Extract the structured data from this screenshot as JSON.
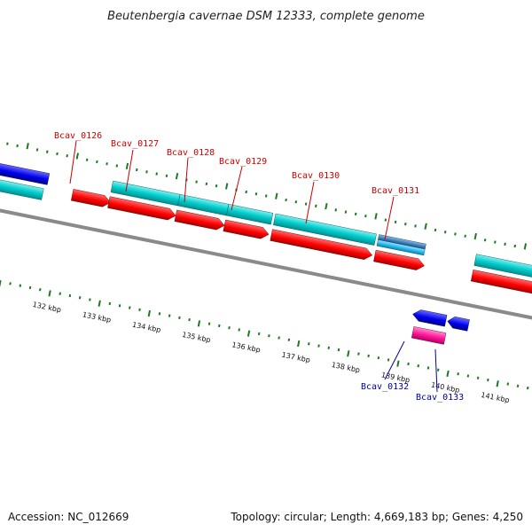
{
  "title": "Beutenbergia cavernae DSM 12333, complete genome",
  "footer": {
    "accession": "Accession: NC_012669",
    "summary": "Topology: circular; Length: 4,669,183 bp; Genes: 4,250"
  },
  "colors": {
    "backbone": "#8a8a8a",
    "tick": "#1f7a1f",
    "cds": "#ff0000",
    "cds_reverse": "#0000ee",
    "gene": "#00cccc",
    "gene_alt": "#3f7fbf",
    "rna": "#ff1493",
    "label_forward": "#cc0000",
    "label_reverse": "#000099"
  },
  "scale": {
    "unit": "kbp",
    "labeled_ticks": [
      132,
      133,
      134,
      135,
      136,
      137,
      138,
      139,
      140,
      141
    ]
  },
  "genes": [
    {
      "id": "Bcav_0126",
      "strand": "forward"
    },
    {
      "id": "Bcav_0127",
      "strand": "forward"
    },
    {
      "id": "Bcav_0128",
      "strand": "forward"
    },
    {
      "id": "Bcav_0129",
      "strand": "forward"
    },
    {
      "id": "Bcav_0130",
      "strand": "forward"
    },
    {
      "id": "Bcav_0131",
      "strand": "forward"
    },
    {
      "id": "Bcav_0132",
      "strand": "reverse"
    },
    {
      "id": "Bcav_0133",
      "strand": "reverse"
    }
  ]
}
